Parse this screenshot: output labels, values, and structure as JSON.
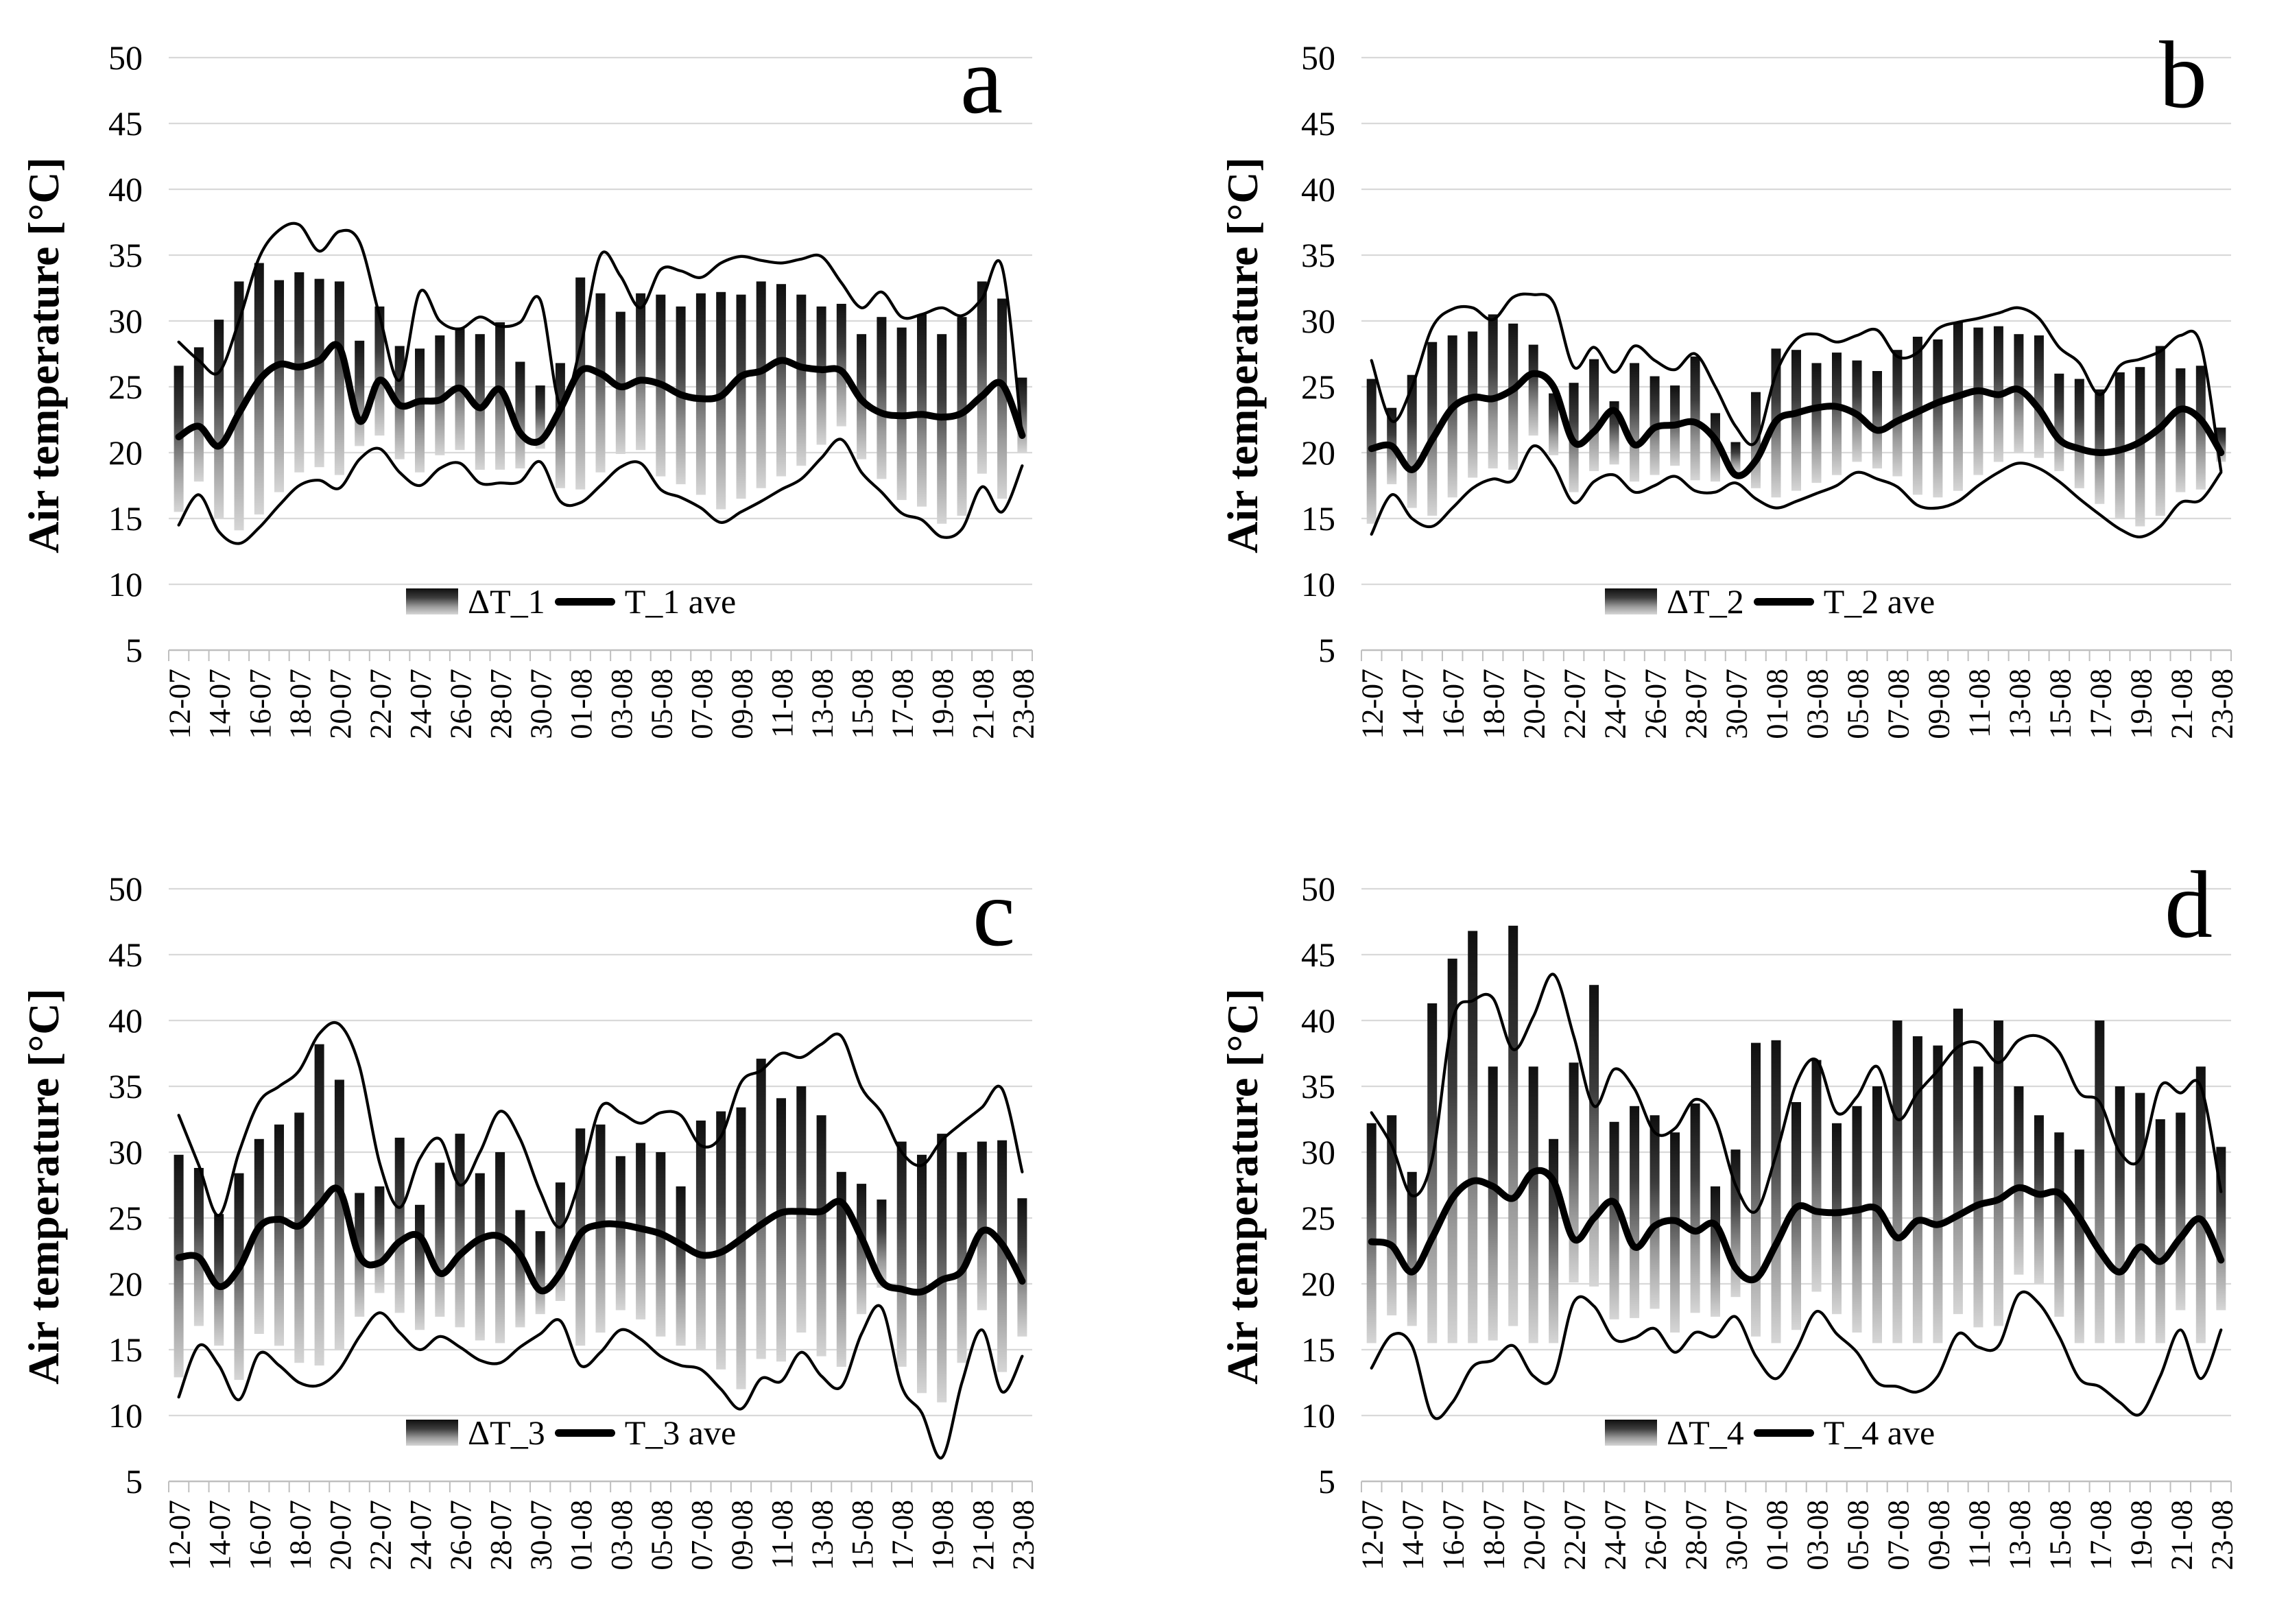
{
  "figure": {
    "background": "#ffffff",
    "panels": 4
  },
  "axes": {
    "y_title": "Air temperature [°C]",
    "y_ticks": [
      50,
      45,
      40,
      35,
      30,
      25,
      20,
      15,
      10,
      5
    ],
    "ylim": [
      5,
      50
    ],
    "x_labels": [
      "12-07",
      "14-07",
      "16-07",
      "18-07",
      "20-07",
      "22-07",
      "24-07",
      "26-07",
      "28-07",
      "30-07",
      "01-08",
      "03-08",
      "05-08",
      "07-08",
      "09-08",
      "11-08",
      "13-08",
      "15-08",
      "17-08",
      "19-08",
      "21-08",
      "23-08"
    ],
    "x_label_every_days": 2,
    "grid": "horizontal-only"
  },
  "style": {
    "grid_color": "#d9d9d9",
    "axis_color": "#bfbfbf",
    "line_color": "#000000",
    "bar_gradient_top": "#0f0f0f",
    "bar_gradient_bottom": "#d6d6d6"
  },
  "chart_data": [
    {
      "type": "bar+line",
      "letter": "a",
      "y_axis_title": "Air temperature [°C]",
      "legend_bar": "ΔT_1",
      "legend_line": "T_1 ave",
      "days": 43,
      "bar_top": [
        26.6,
        28.0,
        30.1,
        33.0,
        34.4,
        33.1,
        33.7,
        33.2,
        33.0,
        28.5,
        31.1,
        28.1,
        27.9,
        28.9,
        29.5,
        29.0,
        29.9,
        26.9,
        25.1,
        26.8,
        33.3,
        32.1,
        30.7,
        32.1,
        32.0,
        31.1,
        32.1,
        32.2,
        32.0,
        33.0,
        32.8,
        32.0,
        31.1,
        31.3,
        29.0,
        30.3,
        29.5,
        30.5,
        29.0,
        30.3,
        33.0,
        31.7,
        25.7
      ],
      "bar_bottom": [
        15.5,
        17.8,
        15.0,
        14.1,
        15.3,
        17.0,
        18.5,
        18.9,
        18.3,
        20.5,
        21.3,
        19.5,
        18.5,
        19.8,
        20.2,
        18.7,
        18.7,
        18.8,
        20.3,
        17.3,
        17.2,
        18.5,
        19.9,
        20.2,
        18.2,
        17.6,
        16.8,
        15.7,
        16.5,
        17.3,
        18.2,
        19.0,
        20.6,
        22.0,
        19.5,
        18.0,
        16.4,
        15.9,
        14.6,
        15.2,
        18.4,
        16.5,
        20.0
      ],
      "t_max": [
        28.4,
        27.0,
        26.1,
        30.0,
        34.8,
        36.9,
        37.3,
        35.3,
        36.8,
        36.0,
        30.4,
        25.5,
        32.2,
        30.0,
        29.4,
        30.3,
        29.6,
        29.9,
        31.6,
        23.6,
        28.0,
        35.0,
        33.4,
        31.0,
        33.9,
        33.8,
        33.3,
        34.4,
        34.9,
        34.6,
        34.4,
        34.7,
        34.9,
        32.9,
        31.0,
        32.2,
        30.3,
        30.5,
        31.0,
        30.4,
        31.7,
        34.1,
        21.2
      ],
      "t_min": [
        14.5,
        16.8,
        14.0,
        13.1,
        14.3,
        16.0,
        17.5,
        17.9,
        17.3,
        19.5,
        20.3,
        18.5,
        17.5,
        18.8,
        19.2,
        17.7,
        17.7,
        17.8,
        19.3,
        16.3,
        16.2,
        17.5,
        18.9,
        19.2,
        17.2,
        16.6,
        15.8,
        14.7,
        15.5,
        16.3,
        17.2,
        18.0,
        19.6,
        21.0,
        18.5,
        17.0,
        15.4,
        14.9,
        13.6,
        14.2,
        17.4,
        15.5,
        19.0
      ],
      "t_ave": [
        21.2,
        22.0,
        20.5,
        23.0,
        25.5,
        26.7,
        26.5,
        27.0,
        28.0,
        22.4,
        25.5,
        23.6,
        23.9,
        24.0,
        24.9,
        23.4,
        24.8,
        21.5,
        20.9,
        23.3,
        26.2,
        26.0,
        25.0,
        25.5,
        25.2,
        24.4,
        24.1,
        24.3,
        25.8,
        26.2,
        27.0,
        26.5,
        26.3,
        26.2,
        24.0,
        23.0,
        22.8,
        22.9,
        22.7,
        23.0,
        24.3,
        25.2,
        21.3
      ]
    },
    {
      "type": "bar+line",
      "letter": "b",
      "y_axis_title": "Air temperature [°C]",
      "legend_bar": "ΔT_2",
      "legend_line": "T_2 ave",
      "days": 43,
      "bar_top": [
        25.6,
        23.4,
        25.9,
        28.4,
        28.9,
        29.2,
        30.5,
        29.8,
        28.2,
        24.5,
        25.3,
        27.1,
        23.9,
        26.8,
        25.8,
        25.1,
        27.3,
        23.0,
        20.8,
        24.6,
        27.9,
        27.8,
        26.8,
        27.6,
        27.0,
        26.2,
        27.8,
        28.8,
        28.6,
        29.9,
        29.5,
        29.6,
        29.0,
        28.9,
        26.0,
        25.6,
        24.8,
        26.1,
        26.5,
        28.1,
        26.4,
        26.6,
        21.9
      ],
      "bar_bottom": [
        14.6,
        17.6,
        15.8,
        15.2,
        16.6,
        18.1,
        18.8,
        18.7,
        21.3,
        19.8,
        17.0,
        18.6,
        19.1,
        17.8,
        18.3,
        19.0,
        17.9,
        17.8,
        18.5,
        17.3,
        16.6,
        17.1,
        17.7,
        18.3,
        19.3,
        18.8,
        18.2,
        16.8,
        16.6,
        17.1,
        18.3,
        19.3,
        20.0,
        19.6,
        18.6,
        17.3,
        16.1,
        15.0,
        14.4,
        15.2,
        17.0,
        17.2,
        19.3
      ],
      "t_max": [
        27.0,
        22.4,
        25.0,
        29.5,
        30.9,
        31.0,
        30.1,
        31.8,
        32.0,
        31.4,
        26.5,
        28.0,
        26.1,
        28.1,
        27.0,
        26.3,
        27.5,
        25.0,
        22.0,
        20.8,
        26.0,
        28.6,
        29.0,
        28.4,
        28.9,
        29.3,
        27.3,
        27.6,
        29.4,
        29.9,
        30.2,
        30.6,
        31.0,
        30.2,
        28.0,
        26.8,
        24.4,
        26.6,
        27.1,
        27.7,
        28.9,
        28.2,
        18.6
      ],
      "t_min": [
        13.8,
        16.8,
        15.0,
        14.4,
        15.8,
        17.3,
        18.0,
        17.9,
        20.5,
        19.0,
        16.2,
        17.8,
        18.3,
        17.0,
        17.5,
        18.2,
        17.1,
        17.0,
        17.7,
        16.5,
        15.8,
        16.3,
        16.9,
        17.5,
        18.5,
        18.0,
        17.4,
        16.0,
        15.8,
        16.3,
        17.5,
        18.5,
        19.2,
        18.8,
        17.8,
        16.5,
        15.3,
        14.2,
        13.6,
        14.4,
        16.2,
        16.4,
        18.5
      ],
      "t_ave": [
        20.3,
        20.5,
        18.7,
        21.0,
        23.4,
        24.2,
        24.1,
        24.8,
        26.0,
        25.0,
        20.8,
        21.6,
        23.2,
        20.6,
        21.9,
        22.1,
        22.3,
        21.0,
        18.3,
        19.4,
        22.4,
        23.0,
        23.4,
        23.5,
        22.9,
        21.7,
        22.4,
        23.1,
        23.8,
        24.3,
        24.7,
        24.4,
        24.8,
        23.3,
        21.0,
        20.3,
        20.0,
        20.2,
        20.8,
        21.9,
        23.3,
        22.5,
        20.0
      ]
    },
    {
      "type": "bar+line",
      "letter": "c",
      "y_axis_title": "Air temperature [°C]",
      "legend_bar": "ΔT_3",
      "legend_line": "T_3 ave",
      "days": 43,
      "bar_top": [
        29.8,
        28.8,
        25.3,
        28.4,
        31.0,
        32.1,
        33.0,
        38.2,
        35.5,
        26.9,
        27.4,
        31.1,
        26.0,
        29.2,
        31.4,
        28.4,
        30.0,
        25.6,
        24.0,
        27.7,
        31.8,
        32.1,
        29.7,
        30.7,
        30.0,
        27.4,
        32.4,
        33.1,
        33.4,
        37.1,
        34.1,
        35.0,
        32.8,
        28.5,
        27.6,
        26.4,
        30.8,
        29.8,
        31.4,
        30.0,
        30.8,
        30.9,
        26.5
      ],
      "bar_bottom": [
        12.9,
        16.8,
        15.3,
        12.7,
        16.2,
        15.3,
        14.0,
        13.8,
        15.0,
        17.5,
        19.3,
        17.8,
        16.5,
        17.5,
        16.7,
        15.7,
        15.5,
        16.7,
        17.7,
        18.7,
        15.3,
        16.3,
        18.0,
        17.3,
        16.0,
        15.3,
        15.0,
        13.5,
        12.0,
        14.3,
        14.1,
        16.3,
        14.5,
        13.7,
        17.7,
        19.7,
        13.7,
        11.7,
        11.0,
        14.0,
        18.0,
        13.3,
        16.0
      ],
      "t_max": [
        32.8,
        29.0,
        25.2,
        30.0,
        33.8,
        35.0,
        36.2,
        39.0,
        39.7,
        36.5,
        29.2,
        25.8,
        29.5,
        31.0,
        27.5,
        30.0,
        33.1,
        31.0,
        27.0,
        24.3,
        28.0,
        33.4,
        33.0,
        32.2,
        33.0,
        32.8,
        30.5,
        31.2,
        35.3,
        36.2,
        37.5,
        37.2,
        38.2,
        38.8,
        34.9,
        33.0,
        30.0,
        29.0,
        30.9,
        32.2,
        33.4,
        34.8,
        28.5
      ],
      "t_min": [
        11.4,
        15.3,
        13.8,
        11.2,
        14.7,
        13.8,
        12.5,
        12.3,
        13.5,
        16.0,
        17.8,
        16.3,
        15.0,
        16.0,
        15.2,
        14.2,
        14.0,
        15.2,
        16.2,
        17.2,
        13.8,
        14.8,
        16.5,
        15.8,
        14.5,
        13.8,
        13.5,
        12.0,
        10.5,
        12.8,
        12.6,
        14.8,
        13.0,
        12.2,
        16.2,
        18.2,
        12.2,
        10.2,
        6.8,
        12.5,
        16.5,
        11.8,
        14.5
      ],
      "t_ave": [
        22.0,
        22.0,
        19.8,
        21.2,
        24.3,
        24.9,
        24.4,
        26.0,
        27.1,
        22.1,
        21.6,
        23.2,
        23.6,
        20.8,
        22.2,
        23.4,
        23.6,
        22.2,
        19.5,
        20.8,
        23.8,
        24.5,
        24.5,
        24.2,
        23.8,
        23.0,
        22.2,
        22.4,
        23.4,
        24.5,
        25.4,
        25.5,
        25.5,
        26.2,
        23.5,
        20.2,
        19.6,
        19.4,
        20.3,
        21.0,
        24.0,
        23.0,
        20.2
      ]
    },
    {
      "type": "bar+line",
      "letter": "d",
      "y_axis_title": "Air temperature [°C]",
      "legend_bar": "ΔT_4",
      "legend_line": "T_4 ave",
      "days": 43,
      "bar_top": [
        32.2,
        32.8,
        28.5,
        41.3,
        44.7,
        46.8,
        36.5,
        47.2,
        36.5,
        31.0,
        36.8,
        42.7,
        32.3,
        33.5,
        32.8,
        31.5,
        33.7,
        27.4,
        30.2,
        38.3,
        38.5,
        33.8,
        37.0,
        32.2,
        33.5,
        35.0,
        40.0,
        38.8,
        38.1,
        40.9,
        36.5,
        40.0,
        35.0,
        32.8,
        31.5,
        30.2,
        40.0,
        35.0,
        34.5,
        32.5,
        33.0,
        36.5,
        30.4
      ],
      "bar_bottom": [
        15.5,
        17.6,
        16.8,
        15.5,
        15.5,
        15.5,
        15.7,
        16.8,
        15.5,
        15.5,
        20.1,
        19.8,
        17.3,
        17.4,
        18.1,
        16.3,
        17.8,
        17.5,
        19.0,
        16.0,
        15.5,
        16.5,
        19.4,
        17.7,
        16.3,
        15.5,
        15.5,
        15.5,
        15.5,
        17.7,
        16.7,
        16.8,
        20.7,
        20.0,
        17.5,
        15.5,
        15.5,
        15.5,
        15.5,
        15.5,
        18.0,
        15.5,
        18.0
      ],
      "t_max": [
        33.0,
        30.5,
        26.7,
        29.5,
        40.0,
        41.5,
        41.7,
        37.8,
        40.3,
        43.5,
        38.8,
        33.5,
        36.3,
        34.8,
        31.5,
        31.8,
        34.0,
        32.5,
        27.5,
        25.5,
        29.8,
        35.2,
        37.0,
        33.0,
        34.2,
        36.5,
        32.5,
        34.5,
        36.2,
        38.0,
        38.3,
        36.8,
        38.5,
        38.8,
        37.6,
        34.5,
        33.8,
        30.0,
        29.5,
        35.0,
        34.5,
        35.0,
        27.0
      ],
      "t_min": [
        13.6,
        16.1,
        15.3,
        10.0,
        11.0,
        13.7,
        14.2,
        15.3,
        13.0,
        12.9,
        18.6,
        18.3,
        15.8,
        15.9,
        16.6,
        14.8,
        16.3,
        16.0,
        17.5,
        14.5,
        12.8,
        15.0,
        17.9,
        16.2,
        14.8,
        12.5,
        12.2,
        11.8,
        13.0,
        16.2,
        15.2,
        15.3,
        19.2,
        18.5,
        16.0,
        12.8,
        12.2,
        11.0,
        10.1,
        13.0,
        16.5,
        12.8,
        16.5
      ],
      "t_ave": [
        23.2,
        22.9,
        20.9,
        23.5,
        26.5,
        27.8,
        27.4,
        26.5,
        28.5,
        27.8,
        23.4,
        25.0,
        26.2,
        22.8,
        24.4,
        24.8,
        24.0,
        24.5,
        21.2,
        20.4,
        23.0,
        25.8,
        25.5,
        25.4,
        25.6,
        25.7,
        23.5,
        24.8,
        24.5,
        25.2,
        26.0,
        26.4,
        27.3,
        26.8,
        26.9,
        25.0,
        22.5,
        20.9,
        22.8,
        21.7,
        23.5,
        24.9,
        21.8
      ]
    }
  ]
}
